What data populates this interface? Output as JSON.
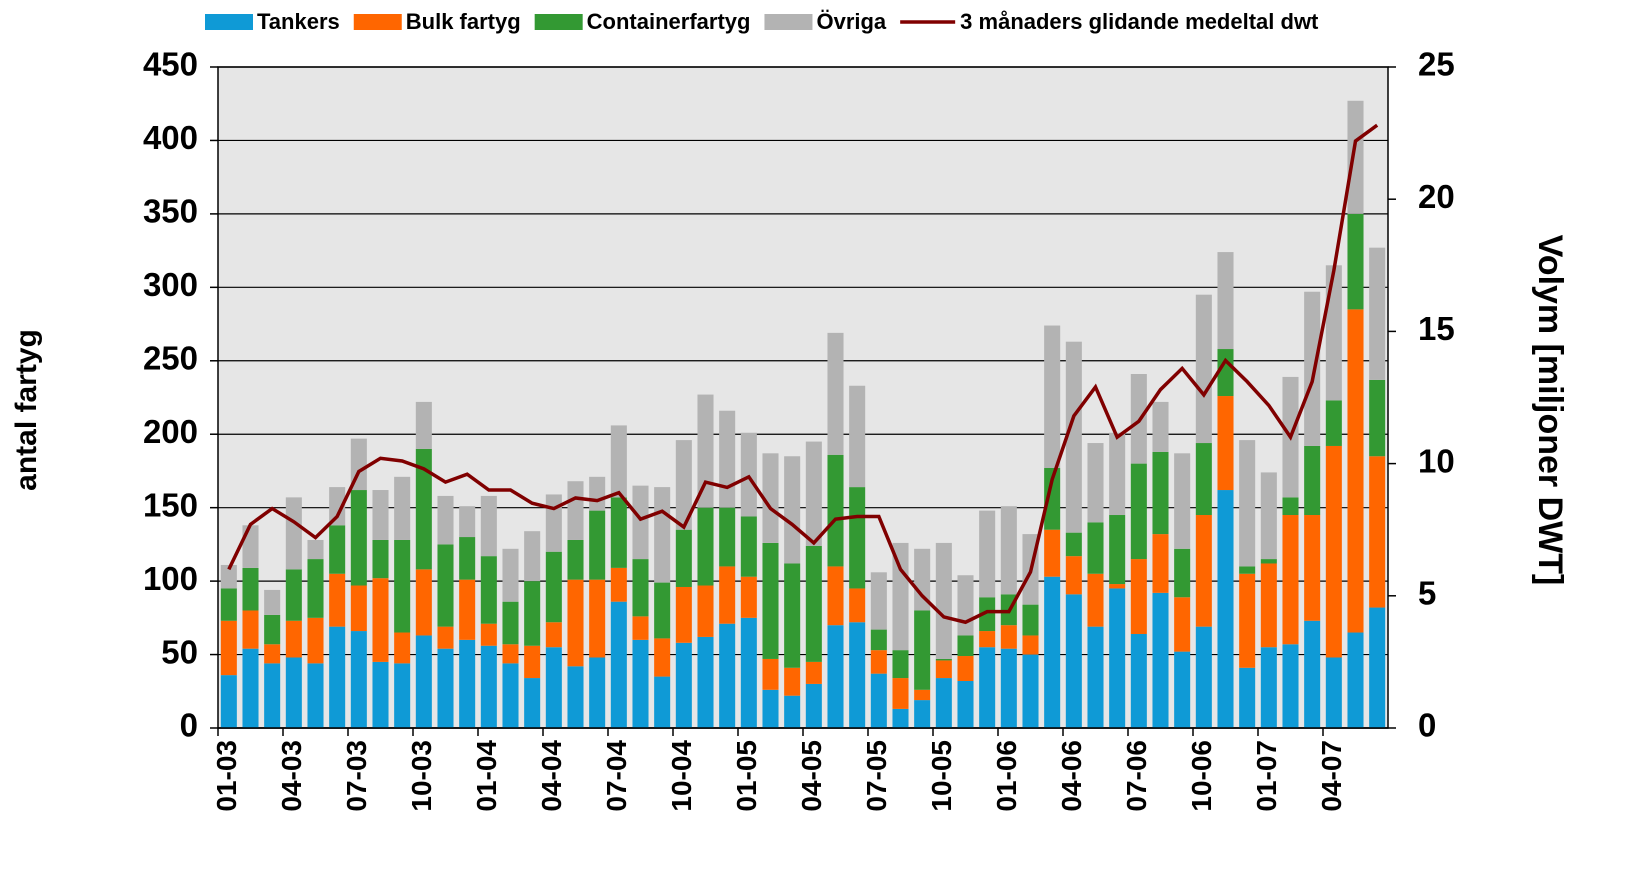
{
  "chart_data": {
    "type": "stacked_bar_line",
    "y_label": "antal fartyg",
    "y2_label": "Volym [miljoner DWT]",
    "categories": [
      "01-03",
      null,
      null,
      "04-03",
      null,
      null,
      "07-03",
      null,
      null,
      "10-03",
      null,
      null,
      "01-04",
      null,
      null,
      "04-04",
      null,
      null,
      "07-04",
      null,
      null,
      "10-04",
      null,
      null,
      "01-05",
      null,
      null,
      "04-05",
      null,
      null,
      "07-05",
      null,
      null,
      "10-05",
      null,
      null,
      "01-06",
      null,
      null,
      "04-06",
      null,
      null,
      "07-06",
      null,
      null,
      "10-06",
      null,
      null,
      "01-07",
      null,
      null,
      "04-07",
      null,
      null
    ],
    "series": [
      {
        "name": "Tankers",
        "color": "#0f9ad6",
        "values": [
          36,
          54,
          44,
          48,
          44,
          69,
          66,
          45,
          44,
          63,
          54,
          60,
          56,
          44,
          34,
          55,
          42,
          48,
          86,
          60,
          35,
          58,
          62,
          71,
          75,
          26,
          22,
          30,
          70,
          72,
          37,
          13,
          19,
          34,
          32,
          55,
          54,
          50,
          103,
          91,
          69,
          95,
          64,
          92,
          52,
          69,
          162,
          41,
          55,
          57,
          73,
          48,
          65,
          82
        ]
      },
      {
        "name": "Bulk fartyg",
        "color": "#ff6600",
        "values": [
          37,
          26,
          13,
          25,
          31,
          36,
          31,
          57,
          21,
          45,
          15,
          41,
          15,
          13,
          22,
          17,
          59,
          53,
          23,
          16,
          26,
          38,
          35,
          39,
          28,
          21,
          19,
          15,
          40,
          23,
          16,
          21,
          7,
          12,
          17,
          11,
          16,
          13,
          32,
          26,
          36,
          3,
          51,
          40,
          37,
          76,
          64,
          64,
          57,
          88,
          72,
          144,
          220,
          103
        ]
      },
      {
        "name": "Containerfartyg",
        "color": "#339933",
        "values": [
          22,
          29,
          20,
          35,
          40,
          33,
          65,
          26,
          63,
          82,
          56,
          29,
          46,
          29,
          44,
          48,
          27,
          47,
          48,
          39,
          38,
          39,
          53,
          40,
          41,
          79,
          71,
          79,
          76,
          69,
          14,
          19,
          54,
          1,
          14,
          23,
          21,
          21,
          42,
          16,
          35,
          47,
          65,
          56,
          33,
          49,
          32,
          5,
          3,
          12,
          47,
          31,
          65,
          52
        ]
      },
      {
        "name": "Övriga",
        "color": "#b3b3b3",
        "values": [
          16,
          29,
          17,
          49,
          13,
          26,
          35,
          34,
          43,
          32,
          33,
          21,
          41,
          36,
          34,
          39,
          40,
          23,
          49,
          50,
          65,
          61,
          77,
          66,
          57,
          61,
          73,
          71,
          83,
          69,
          39,
          73,
          42,
          79,
          41,
          59,
          60,
          48,
          97,
          130,
          54,
          56,
          61,
          34,
          65,
          101,
          66,
          86,
          59,
          82,
          105,
          92,
          77,
          90
        ]
      },
      {
        "name": "3 månaders glidande medeltal dwt",
        "color": "#800000",
        "type": "line",
        "axis": "y2",
        "values": [
          6.0,
          7.7,
          8.3,
          7.8,
          7.2,
          8.0,
          9.7,
          10.2,
          10.1,
          9.8,
          9.3,
          9.6,
          9.0,
          9.0,
          8.5,
          8.3,
          8.7,
          8.6,
          8.9,
          7.9,
          8.2,
          7.6,
          9.3,
          9.1,
          9.5,
          8.3,
          7.7,
          7.0,
          7.9,
          8.0,
          8.0,
          6.0,
          5.0,
          4.2,
          4.0,
          4.4,
          4.4,
          5.9,
          9.4,
          11.8,
          12.9,
          11.0,
          11.6,
          12.8,
          13.6,
          12.6,
          13.9,
          13.1,
          12.2,
          11.0,
          13.1,
          17.3,
          22.2,
          22.8
        ]
      }
    ],
    "ylim": [
      0,
      450
    ],
    "yticks": [
      0,
      50,
      100,
      150,
      200,
      250,
      300,
      350,
      400,
      450
    ],
    "y2lim": [
      0,
      25
    ],
    "y2ticks": [
      0,
      5,
      10,
      15,
      20,
      25
    ],
    "grid": true,
    "legend": "top"
  }
}
